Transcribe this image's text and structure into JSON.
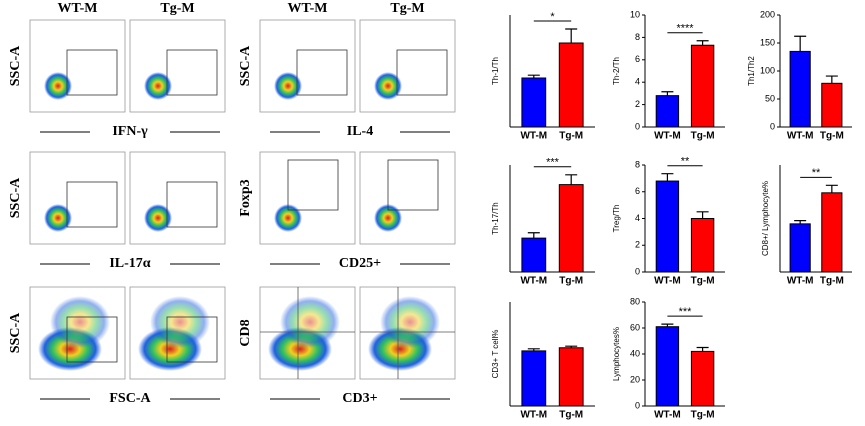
{
  "flow": [
    {
      "headers": [
        "WT-M",
        "Tg-M"
      ],
      "panels": [
        {
          "y_label": "SSC-A",
          "x_label": "IFN-γ"
        },
        {
          "y_label": "SSC-A",
          "x_label": "IL-17α"
        },
        {
          "y_label": "SSC-A",
          "x_label": "FSC-A"
        }
      ]
    },
    {
      "headers": [
        "WT-M",
        "Tg-M"
      ],
      "panels": [
        {
          "y_label": "SSC-A",
          "x_label": "IL-4"
        },
        {
          "y_label": "Foxp3",
          "x_label": "CD25+"
        },
        {
          "y_label": "CD8",
          "x_label": "CD3+"
        }
      ]
    }
  ],
  "chart_data": [
    {
      "type": "bar",
      "y_label": "Th-1/Th",
      "categories": [
        "WT-M",
        "Tg-M"
      ],
      "values": [
        3.5,
        6.0
      ],
      "errors": [
        0.2,
        1.0
      ],
      "colors": [
        "#0000ff",
        "#ff0000"
      ],
      "ylim": [
        0,
        8
      ],
      "annotation": "*"
    },
    {
      "type": "bar",
      "y_label": "Th-2/Th",
      "categories": [
        "WT-M",
        "Tg-M"
      ],
      "values": [
        2.8,
        7.3
      ],
      "errors": [
        0.35,
        0.4
      ],
      "colors": [
        "#0000ff",
        "#ff0000"
      ],
      "ylim": [
        0,
        10
      ],
      "yticks": [
        0,
        2,
        4,
        6,
        8,
        10
      ],
      "annotation": "****"
    },
    {
      "type": "bar",
      "y_label": "Th1/Th2",
      "categories": [
        "WT-M",
        "Tg-M"
      ],
      "values": [
        135,
        78
      ],
      "errors": [
        27,
        13
      ],
      "colors": [
        "#0000ff",
        "#ff0000"
      ],
      "ylim": [
        0,
        200
      ],
      "yticks": [
        0,
        50,
        100,
        150,
        200
      ]
    },
    {
      "type": "bar",
      "y_label": "Th-17/Th",
      "categories": [
        "WT-M",
        "Tg-M"
      ],
      "values": [
        1.9,
        4.9
      ],
      "errors": [
        0.3,
        0.55
      ],
      "colors": [
        "#0000ff",
        "#ff0000"
      ],
      "ylim": [
        0,
        6
      ],
      "annotation": "***"
    },
    {
      "type": "bar",
      "y_label": "Treg/Th",
      "categories": [
        "WT-M",
        "Tg-M"
      ],
      "values": [
        6.8,
        4.0
      ],
      "errors": [
        0.55,
        0.5
      ],
      "colors": [
        "#0000ff",
        "#ff0000"
      ],
      "ylim": [
        0,
        8
      ],
      "yticks": [
        0,
        2,
        4,
        6,
        8
      ],
      "annotation": "**"
    },
    {
      "type": "bar",
      "y_label": "CD8+/ Lymphocyte%",
      "categories": [
        "WT-M",
        "Tg-M"
      ],
      "values": [
        9.0,
        14.8
      ],
      "errors": [
        0.6,
        1.4
      ],
      "colors": [
        "#0000ff",
        "#ff0000"
      ],
      "ylim": [
        0,
        20
      ],
      "annotation": "**"
    },
    {
      "type": "bar",
      "y_label": "CD3+ T cell%",
      "categories": [
        "WT-M",
        "Tg-M"
      ],
      "values": [
        0.53,
        0.56
      ],
      "errors": [
        0.02,
        0.015
      ],
      "colors": [
        "#0000ff",
        "#ff0000"
      ],
      "ylim": [
        0,
        1
      ]
    },
    {
      "type": "bar",
      "y_label": "Lymphocytes%",
      "categories": [
        "WT-M",
        "Tg-M"
      ],
      "values": [
        61,
        42
      ],
      "errors": [
        2,
        3
      ],
      "colors": [
        "#0000ff",
        "#ff0000"
      ],
      "ylim": [
        0,
        80
      ],
      "yticks": [
        0,
        20,
        40,
        60,
        80
      ],
      "annotation": "***"
    }
  ]
}
